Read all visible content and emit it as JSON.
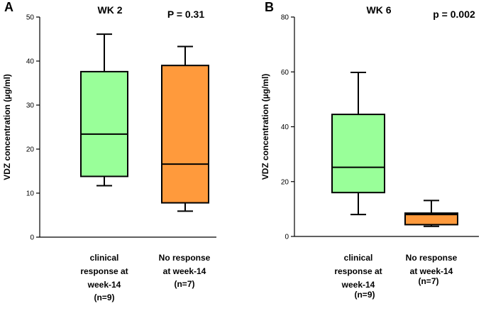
{
  "chart_data": [
    {
      "panel": "A",
      "type": "box",
      "title": "WK 2",
      "annotation": "P = 0.31",
      "ylabel": "VDZ concentration (µg/ml)",
      "ylim": [
        0,
        50
      ],
      "yticks": [
        0,
        10,
        20,
        30,
        40,
        50
      ],
      "categories": [
        {
          "lines": [
            "clinical",
            "response at",
            "week-14",
            "(n=9)"
          ],
          "color": "#99ff99",
          "min": 11.7,
          "q1": 13.8,
          "median": 23.4,
          "q3": 37.6,
          "max": 46.1
        },
        {
          "lines": [
            "No response",
            "at week-14",
            "(n=7)"
          ],
          "color": "#ff9a3c",
          "min": 5.9,
          "q1": 7.8,
          "median": 16.6,
          "q3": 39.0,
          "max": 43.3
        }
      ]
    },
    {
      "panel": "B",
      "type": "box",
      "title": "WK 6",
      "annotation": "p = 0.002",
      "ylabel": "VDZ concentration (µg/ml)",
      "ylim": [
        0,
        80
      ],
      "yticks": [
        0,
        20,
        40,
        60,
        80
      ],
      "categories": [
        {
          "lines": [
            "clinical",
            "response at",
            "week-14",
            "(n=9)"
          ],
          "color": "#99ff99",
          "min": 8.0,
          "q1": 16.0,
          "median": 25.2,
          "q3": 44.5,
          "max": 59.8
        },
        {
          "lines": [
            "No response",
            "at week-14",
            "(n=7)"
          ],
          "color": "#ff9a3c",
          "min": 3.7,
          "q1": 4.3,
          "median": 8.0,
          "q3": 8.5,
          "max": 13.1
        }
      ]
    }
  ]
}
